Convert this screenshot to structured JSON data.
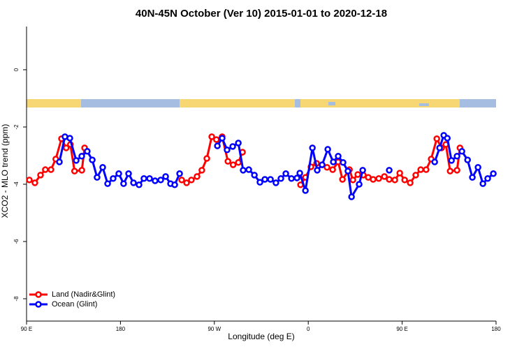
{
  "chart_data": {
    "type": "line",
    "title": "40N-45N October (Ver 10)   2015-01-01 to 2020-12-18",
    "x_label": "Longitude (deg E)",
    "y_label": "XCO2 - MLO trend (ppm)",
    "xlim": [
      90,
      540
    ],
    "xticks": [
      {
        "value": 90,
        "label": "90 E"
      },
      180,
      {
        "value": 270,
        "label": "90 W"
      },
      {
        "value": 360,
        "label": "0"
      },
      {
        "value": 450,
        "label": "90 E"
      },
      {
        "value": 540,
        "label": "180"
      }
    ],
    "ylim": [
      -8.78,
      1.51
    ],
    "yticks": [
      0,
      -2,
      -4,
      -6,
      -8
    ],
    "legend": "bottom left",
    "series": [
      {
        "name": "Land (Nadir&Glint)",
        "color": "#ff0000",
        "x": [
          92.7,
          98,
          103.4,
          108,
          113.4,
          118,
          123.5,
          128,
          132,
          136,
          143,
          145.6,
          null,
          238.7,
          243.4,
          248,
          253.4,
          258,
          262.8,
          267.5,
          272,
          277.5,
          283,
          288,
          293,
          297,
          null,
          352.6,
          357.3,
          362.6,
          368,
          373.3,
          378,
          383.4,
          388.7,
          392.8,
          399.5,
          402.8,
          407.5,
          412.8,
          417.5,
          422.2,
          427.6,
          433,
          437.6,
          443,
          447.7,
          452.4,
          457.7,
          463,
          467.8,
          473,
          477.8,
          483.2,
          487.8,
          491.9,
          496,
          502.6,
          505.4
        ],
        "values": [
          -3.85,
          -3.95,
          -3.68,
          -3.49,
          -3.49,
          -3.12,
          -2.41,
          -2.73,
          -2.61,
          -3.54,
          -3.51,
          -2.73,
          null,
          -3.85,
          -3.95,
          -3.85,
          -3.73,
          -3.51,
          -3.1,
          -2.34,
          -2.44,
          -2.34,
          -3.2,
          -3.32,
          -3.24,
          -2.88,
          null,
          -4.02,
          -3.76,
          -3.39,
          -3.27,
          -3.32,
          -3.41,
          -3.49,
          -3.22,
          -3.83,
          -3.49,
          -3.85,
          -3.66,
          -3.68,
          -3.76,
          -3.83,
          -3.8,
          -3.73,
          -3.83,
          -3.85,
          -3.61,
          -3.85,
          -3.95,
          -3.68,
          -3.49,
          -3.49,
          -3.12,
          -2.41,
          -2.73,
          -2.61,
          -3.54,
          -3.51,
          -2.73
        ]
      },
      {
        "name": "Ocean (Glint)",
        "color": "#0000ff",
        "x": [
          121.5,
          126.8,
          131.5,
          137.6,
          142.9,
          148.2,
          153,
          157.6,
          163,
          167.7,
          173,
          178.4,
          183,
          187.8,
          192.5,
          197.8,
          202.5,
          207.9,
          213.2,
          218.6,
          223.3,
          228,
          232,
          236.7,
          null,
          272.9,
          277.5,
          282.2,
          287.6,
          293,
          297.6,
          303,
          308.4,
          313.7,
          318.4,
          323.8,
          329,
          333.8,
          338.5,
          343.9,
          349.2,
          351.9,
          357.3,
          364,
          368.6,
          373.3,
          378.7,
          384,
          388.7,
          393.4,
          398,
          401.5,
          408.8,
          412.2,
          null,
          437.6,
          null,
          481.2,
          485.9,
          489.9,
          493.3,
          497.3,
          502.6,
          507.3,
          512.7,
          517.3,
          522.7,
          527.4,
          532,
          537.4
        ],
        "values": [
          -3.22,
          -2.34,
          -2.39,
          -3.17,
          -3.02,
          -2.85,
          -3.15,
          -3.76,
          -3.41,
          -3.98,
          -3.8,
          -3.63,
          -3.98,
          -3.63,
          -3.95,
          -4.02,
          -3.8,
          -3.8,
          -3.88,
          -3.85,
          -3.73,
          -3.98,
          -4.02,
          -3.63,
          null,
          -2.66,
          -2.39,
          -2.8,
          -2.68,
          -2.56,
          -3.51,
          -3.49,
          -3.68,
          -3.93,
          -3.83,
          -3.83,
          -3.95,
          -3.8,
          -3.63,
          -3.8,
          -3.78,
          -3.61,
          -4.22,
          -2.73,
          -3.51,
          -3.32,
          -2.78,
          -3.22,
          -3.02,
          -3.24,
          -3.54,
          -4.44,
          -4.0,
          -3.51,
          null,
          -3.51,
          null,
          -3.22,
          -2.73,
          -2.29,
          -2.39,
          -3.17,
          -3.02,
          -2.85,
          -3.15,
          -3.76,
          -3.41,
          -3.98,
          -3.8,
          -3.63
        ]
      }
    ]
  }
}
